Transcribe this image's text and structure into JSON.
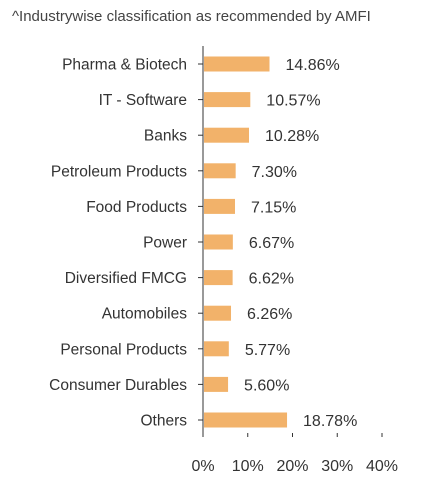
{
  "chart_data": {
    "type": "bar",
    "orientation": "horizontal",
    "subtitle": "^Industrywise classification as recommended by AMFI",
    "categories": [
      "Pharma & Biotech",
      "IT - Software",
      "Banks",
      "Petroleum Products",
      "Food Products",
      "Power",
      "Diversified FMCG",
      "Automobiles",
      "Personal Products",
      "Consumer Durables",
      "Others"
    ],
    "values": [
      14.86,
      10.57,
      10.28,
      7.3,
      7.15,
      6.67,
      6.62,
      6.26,
      5.77,
      5.6,
      18.78
    ],
    "value_labels": [
      "14.86%",
      "10.57%",
      "10.28%",
      "7.30%",
      "7.15%",
      "6.67%",
      "6.62%",
      "6.26%",
      "5.77%",
      "5.60%",
      "18.78%"
    ],
    "xlim": [
      0,
      40
    ],
    "x_ticks": [
      "0%",
      "10%",
      "20%",
      "30%",
      "40%"
    ],
    "x_tick_values": [
      0,
      10,
      20,
      30,
      40
    ],
    "bar_color": "#F2B26A",
    "axis_color": "#333333",
    "grid": false
  }
}
